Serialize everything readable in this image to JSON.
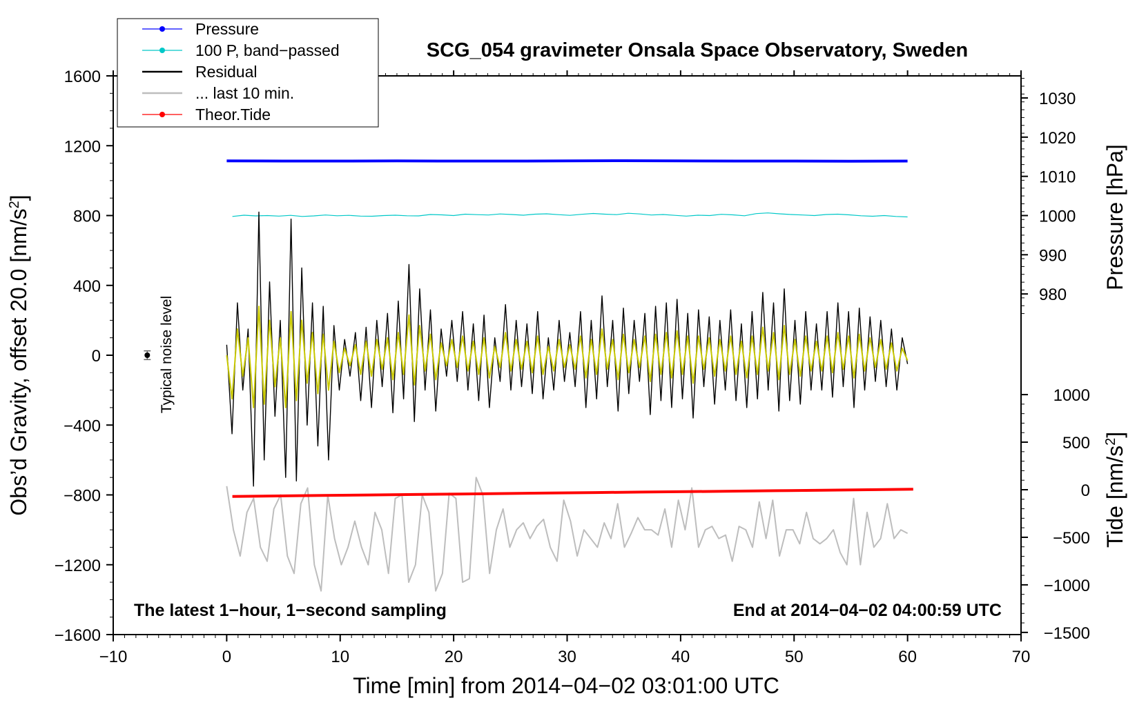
{
  "chart_data": {
    "type": "line",
    "title": "SCG_054 gravimeter Onsala Space Observatory, Sweden",
    "xlabel": "Time [min] from 2014−04−02 03:01:00 UTC",
    "ylabel": "Obs’d Gravity, offset 20.0 [nm/s",
    "ylabel_sup": "2",
    "ylabel_end": "]",
    "y2label": "Pressure [hPa]",
    "y3label": "Tide [nm/s",
    "y3label_sup": "2",
    "y3label_end": "]",
    "xlim": [
      -10,
      70
    ],
    "ylim": [
      -1600,
      1600
    ],
    "pressure_lim": [
      975,
      1035
    ],
    "tide_lim": [
      -1500,
      1500
    ],
    "x_ticks": [
      -10,
      0,
      10,
      20,
      30,
      40,
      50,
      60,
      70
    ],
    "x_tick_labels": [
      "−10",
      "0",
      "10",
      "20",
      "30",
      "40",
      "50",
      "60",
      "70"
    ],
    "y_ticks": [
      -1600,
      -1200,
      -800,
      -400,
      0,
      400,
      800,
      1200,
      1600
    ],
    "y_tick_labels": [
      "−1600",
      "−1200",
      "−800",
      "−400",
      "0",
      "400",
      "800",
      "1200",
      "1600"
    ],
    "pressure_ticks": [
      980,
      990,
      1000,
      1010,
      1020,
      1030
    ],
    "pressure_tick_labels": [
      "980",
      "990",
      "1000",
      "1010",
      "1020",
      "1030"
    ],
    "tide_ticks": [
      -1500,
      -1000,
      -500,
      0,
      500,
      1000
    ],
    "tide_tick_labels": [
      "−1500",
      "−1000",
      "−500",
      "0",
      "500",
      "1000"
    ],
    "legend": [
      {
        "label": "Pressure",
        "color": "#0000ff",
        "marker": true
      },
      {
        "label": "100 P, band−passed",
        "color": "#00c8c8",
        "marker": true
      },
      {
        "label": "Residual",
        "color": "#000000",
        "marker": false
      },
      {
        "label": "... last 10 min.",
        "color": "#bdbdbd",
        "marker": false
      },
      {
        "label": "Theor.Tide",
        "color": "#ff0000",
        "marker": true
      }
    ],
    "legend_position": "top-left",
    "annotations": {
      "noise_label": "Typical noise level",
      "noise_point": {
        "x": -7,
        "y": 0,
        "err": 25
      },
      "bottom_left": "The latest 1−hour, 1−second sampling",
      "bottom_right": "End at 2014−04−02 04:00:59 UTC"
    },
    "series": [
      {
        "name": "Pressure",
        "color": "#0000ff",
        "axis": "gravity",
        "x_range": [
          0,
          60
        ],
        "values": [
          1113,
          1112,
          1112,
          1113,
          1112,
          1112,
          1113,
          1114,
          1113,
          1112,
          1112,
          1111,
          1112
        ]
      },
      {
        "name": "100 P, band−passed",
        "color": "#00c8c8",
        "axis": "gravity",
        "x_range": [
          0.5,
          60
        ],
        "values": [
          795,
          802,
          798,
          800,
          797,
          801,
          795,
          798,
          803,
          799,
          801,
          797,
          796,
          800,
          802,
          799,
          798,
          806,
          804,
          800,
          808,
          805,
          803,
          809,
          806,
          802,
          808,
          810,
          805,
          801,
          807,
          812,
          808,
          805,
          813,
          809,
          803,
          806,
          801,
          797,
          802,
          800,
          807,
          804,
          799,
          811,
          815,
          810,
          806,
          803,
          800,
          806,
          808,
          804,
          799,
          796,
          800,
          795,
          792
        ]
      },
      {
        "name": "Residual",
        "color": "#000000",
        "axis": "gravity",
        "x_range": [
          0,
          60
        ],
        "values": [
          60,
          -450,
          300,
          -200,
          150,
          -750,
          820,
          -600,
          420,
          -350,
          200,
          -700,
          780,
          -720,
          500,
          -400,
          300,
          -520,
          280,
          -600,
          170,
          -200,
          90,
          -120,
          130,
          -260,
          160,
          -300,
          200,
          -180,
          240,
          -330,
          310,
          -250,
          520,
          -380,
          380,
          -200,
          260,
          -320,
          150,
          -120,
          200,
          -150,
          250,
          -200,
          180,
          -260,
          230,
          -300,
          100,
          -150,
          290,
          -200,
          200,
          -180,
          180,
          -220,
          250,
          -250,
          100,
          -200,
          200,
          -150,
          130,
          -180,
          250,
          -300,
          200,
          -250,
          340,
          -180,
          200,
          -320,
          270,
          -220,
          200,
          -150,
          240,
          -340,
          280,
          -260,
          300,
          -300,
          320,
          -250,
          240,
          -360,
          260,
          -180,
          220,
          -280,
          200,
          -200,
          260,
          -260,
          180,
          -300,
          250,
          -250,
          360,
          -200,
          300,
          -320,
          380,
          -260,
          200,
          -280,
          250,
          -200,
          180,
          -200,
          250,
          -240,
          300,
          -180,
          250,
          -300,
          270,
          -200,
          220,
          -150,
          200,
          -180,
          150,
          -200,
          100,
          -50
        ]
      },
      {
        "name": "Residual (band-passed)",
        "color": "#c8c800",
        "axis": "gravity",
        "x_range": [
          0,
          60
        ],
        "values": [
          0,
          -250,
          150,
          -120,
          100,
          -300,
          280,
          -280,
          200,
          -180,
          100,
          -300,
          250,
          -260,
          200,
          -160,
          130,
          -220,
          120,
          -200,
          80,
          -100,
          40,
          -60,
          60,
          -110,
          80,
          -120,
          90,
          -80,
          100,
          -140,
          130,
          -110,
          230,
          -170,
          170,
          -90,
          120,
          -140,
          70,
          -60,
          90,
          -70,
          110,
          -90,
          80,
          -110,
          100,
          -130,
          50,
          -70,
          130,
          -90,
          90,
          -80,
          80,
          -100,
          110,
          -110,
          50,
          -90,
          90,
          -70,
          60,
          -80,
          110,
          -130,
          90,
          -110,
          150,
          -80,
          90,
          -140,
          120,
          -100,
          90,
          -70,
          110,
          -150,
          120,
          -110,
          130,
          -130,
          140,
          -110,
          110,
          -160,
          110,
          -80,
          100,
          -120,
          90,
          -90,
          110,
          -110,
          80,
          -130,
          110,
          -110,
          160,
          -90,
          130,
          -140,
          170,
          -110,
          90,
          -120,
          110,
          -90,
          80,
          -90,
          110,
          -100,
          130,
          -80,
          110,
          -130,
          120,
          -90,
          100,
          -70,
          90,
          -80,
          70,
          -90,
          40,
          -30
        ]
      },
      {
        "name": "... last 10 min.",
        "color": "#bdbdbd",
        "axis": "gravity",
        "x_range": [
          0,
          60
        ],
        "values": [
          -750,
          -1000,
          -1150,
          -900,
          -820,
          -1100,
          -1180,
          -880,
          -800,
          -1150,
          -1250,
          -850,
          -760,
          -1200,
          -1350,
          -800,
          -1050,
          -1200,
          -1100,
          -950,
          -1100,
          -1200,
          -900,
          -1000,
          -1250,
          -820,
          -800,
          -1300,
          -1200,
          -800,
          -900,
          -1350,
          -1250,
          -790,
          -820,
          -1300,
          -1280,
          -700,
          -800,
          -1250,
          -1000,
          -880,
          -1100,
          -1000,
          -960,
          -1050,
          -980,
          -940,
          -1100,
          -1180,
          -830,
          -950,
          -1150,
          -1000,
          -1050,
          -1100,
          -960,
          -1050,
          -850,
          -1100,
          -1020,
          -930,
          -1000,
          -1000,
          -1030,
          -880,
          -1100,
          -830,
          -1000,
          -760,
          -1100,
          -1000,
          -980,
          -1050,
          -1030,
          -1180,
          -980,
          -1000,
          -1100,
          -840,
          -1050,
          -830,
          -1150,
          -1000,
          -1000,
          -1080,
          -900,
          -1050,
          -1080,
          -1050,
          -1000,
          -1130,
          -1200,
          -820,
          -1200,
          -900,
          -1100,
          -1050,
          -850,
          -1050,
          -1000,
          -1020
        ]
      },
      {
        "name": "Theor.Tide",
        "color": "#ff0000",
        "axis": "tide",
        "x_range": [
          0.5,
          60.5
        ],
        "values": [
          -70,
          -65,
          -60,
          -55,
          -50,
          -45,
          -40,
          -35,
          -30,
          -25,
          -20,
          -15,
          -10,
          -5,
          0,
          5
        ]
      }
    ]
  }
}
